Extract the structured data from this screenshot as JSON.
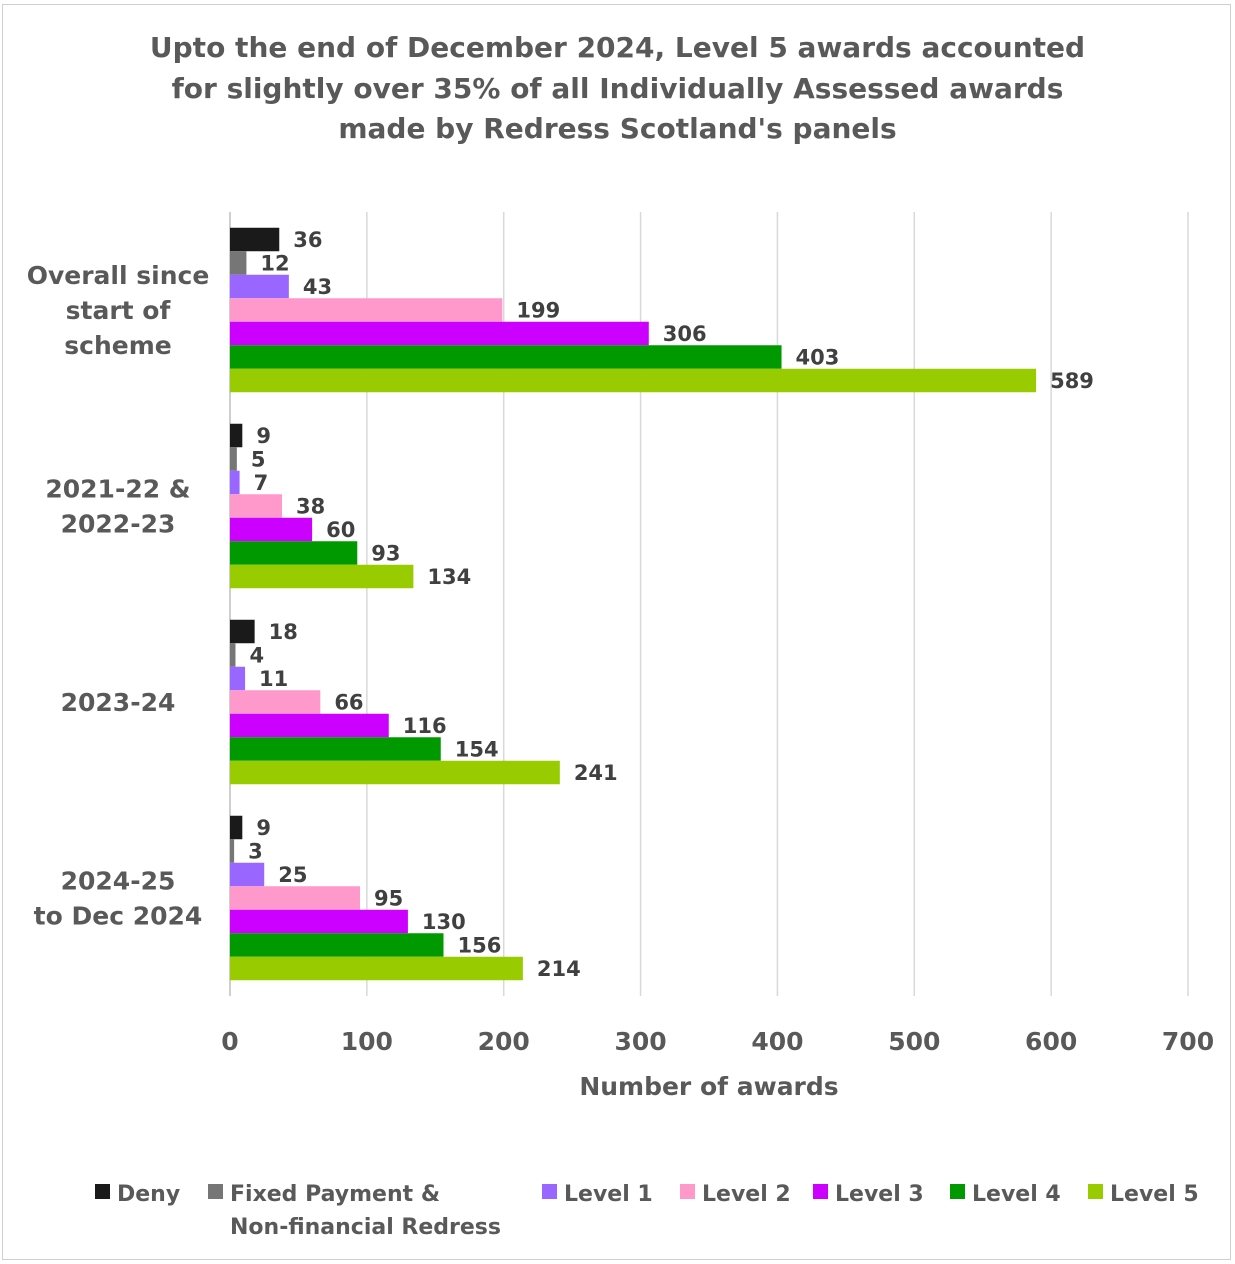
{
  "chart_data": {
    "type": "bar",
    "orientation": "horizontal",
    "title_lines": [
      "Upto the end of December 2024, Level 5 awards accounted",
      "for slightly over 35% of all Individually Assessed awards",
      "made by Redress Scotland's panels"
    ],
    "xlabel": "Number of awards",
    "ylabel": "",
    "xlim": [
      0,
      700
    ],
    "xticks": [
      "0",
      "100",
      "200",
      "300",
      "400",
      "500",
      "600",
      "700"
    ],
    "grid": "vertical",
    "legend_position": "bottom",
    "categories": [
      [
        "Overall since",
        "start of",
        "scheme"
      ],
      [
        "2021-22 &",
        "2022-23"
      ],
      [
        "2023-24"
      ],
      [
        "2024-25",
        "to Dec 2024"
      ]
    ],
    "series": [
      {
        "name": "Deny",
        "legend": [
          "Deny"
        ],
        "color": "#1a1a1a",
        "values": [
          36,
          9,
          18,
          9
        ]
      },
      {
        "name": "Fixed Payment & Non-financial Redress",
        "legend": [
          "Fixed Payment &",
          "Non-financial Redress"
        ],
        "color": "#767676",
        "values": [
          12,
          5,
          4,
          3
        ]
      },
      {
        "name": "Level 1",
        "legend": [
          "Level 1"
        ],
        "color": "#9966ff",
        "values": [
          43,
          7,
          11,
          25
        ]
      },
      {
        "name": "Level 2",
        "legend": [
          "Level 2"
        ],
        "color": "#ff99cc",
        "values": [
          199,
          38,
          66,
          95
        ]
      },
      {
        "name": "Level 3",
        "legend": [
          "Level 3"
        ],
        "color": "#cc00ff",
        "values": [
          306,
          60,
          116,
          130
        ]
      },
      {
        "name": "Level 4",
        "legend": [
          "Level 4"
        ],
        "color": "#009900",
        "values": [
          403,
          93,
          154,
          156
        ]
      },
      {
        "name": "Level 5",
        "legend": [
          "Level 5"
        ],
        "color": "#99cc00",
        "values": [
          589,
          134,
          241,
          214
        ]
      }
    ]
  }
}
